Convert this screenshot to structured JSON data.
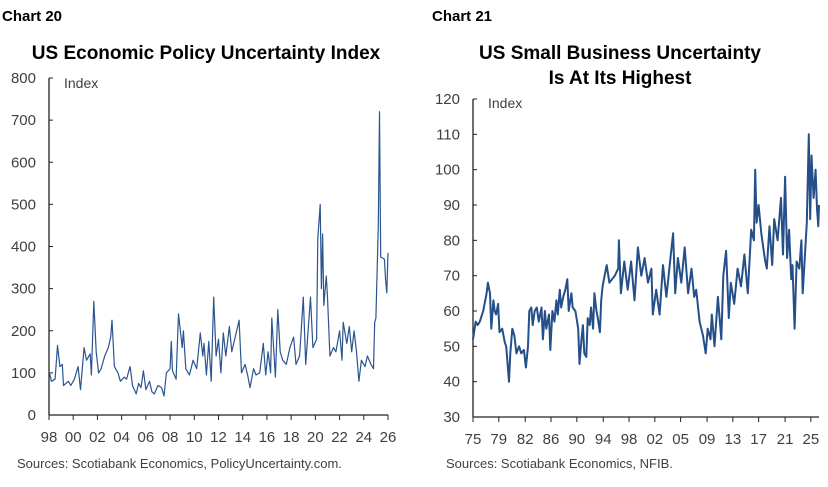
{
  "chart_data": [
    {
      "type": "line",
      "chart_number": "Chart 20",
      "title": "US Economic Policy Uncertainty Index",
      "ylabel": "Index",
      "ylim": [
        0,
        800
      ],
      "xlim": [
        1998,
        2026
      ],
      "yticks": [
        "0",
        "100",
        "200",
        "300",
        "400",
        "500",
        "600",
        "700",
        "800"
      ],
      "xticks": [
        {
          "label": "98",
          "x": 1998
        },
        {
          "label": "00",
          "x": 2000
        },
        {
          "label": "02",
          "x": 2002
        },
        {
          "label": "04",
          "x": 2004
        },
        {
          "label": "06",
          "x": 2006
        },
        {
          "label": "08",
          "x": 2008
        },
        {
          "label": "10",
          "x": 2010
        },
        {
          "label": "12",
          "x": 2012
        },
        {
          "label": "14",
          "x": 2014
        },
        {
          "label": "16",
          "x": 2016
        },
        {
          "label": "18",
          "x": 2018
        },
        {
          "label": "20",
          "x": 2020
        },
        {
          "label": "22",
          "x": 2022
        },
        {
          "label": "24",
          "x": 2024
        },
        {
          "label": "26",
          "x": 2026
        }
      ],
      "grid": false,
      "source": "Sources: Scotiabank Economics, PolicyUncertainty.com.",
      "color": "#2a5590",
      "x": [
        1998.0,
        1998.2,
        1998.5,
        1998.7,
        1998.9,
        1999.1,
        1999.2,
        1999.6,
        1999.8,
        2000.1,
        2000.4,
        2000.6,
        2000.9,
        2001.1,
        2001.4,
        2001.5,
        2001.7,
        2001.9,
        2002.1,
        2002.3,
        2002.6,
        2002.9,
        2003.1,
        2003.2,
        2003.4,
        2003.7,
        2003.9,
        2004.2,
        2004.4,
        2004.7,
        2004.9,
        2005.2,
        2005.4,
        2005.6,
        2005.8,
        2006.0,
        2006.3,
        2006.5,
        2006.7,
        2007.0,
        2007.3,
        2007.5,
        2007.7,
        2008.0,
        2008.1,
        2008.2,
        2008.5,
        2008.7,
        2009.0,
        2009.1,
        2009.3,
        2009.6,
        2009.9,
        2010.2,
        2010.5,
        2010.7,
        2010.8,
        2011.0,
        2011.2,
        2011.4,
        2011.6,
        2011.8,
        2012.0,
        2012.2,
        2012.4,
        2012.6,
        2012.9,
        2013.1,
        2013.7,
        2013.9,
        2014.2,
        2014.4,
        2014.6,
        2014.9,
        2015.1,
        2015.4,
        2015.7,
        2015.9,
        2016.1,
        2016.3,
        2016.4,
        2016.7,
        2016.9,
        2017.1,
        2017.3,
        2017.6,
        2017.9,
        2018.2,
        2018.4,
        2018.7,
        2019.0,
        2019.2,
        2019.6,
        2019.8,
        2020.1,
        2020.2,
        2020.4,
        2020.5,
        2020.6,
        2020.7,
        2020.9,
        2021.0,
        2021.2,
        2021.5,
        2021.7,
        2022.0,
        2022.2,
        2022.3,
        2022.6,
        2022.8,
        2023.0,
        2023.2,
        2023.4,
        2023.6,
        2023.8,
        2024.1,
        2024.3,
        2024.6,
        2024.8,
        2024.9,
        2025.0,
        2025.2,
        2025.3,
        2025.4,
        2025.7,
        2025.8,
        2025.9,
        2026.0
      ],
      "y": [
        105,
        80,
        85,
        165,
        115,
        120,
        70,
        80,
        70,
        85,
        115,
        60,
        160,
        130,
        145,
        95,
        270,
        150,
        100,
        110,
        140,
        160,
        185,
        225,
        115,
        100,
        80,
        90,
        85,
        115,
        70,
        50,
        75,
        65,
        105,
        60,
        80,
        55,
        50,
        70,
        65,
        45,
        100,
        110,
        175,
        105,
        85,
        240,
        160,
        200,
        110,
        95,
        130,
        110,
        195,
        140,
        170,
        95,
        175,
        80,
        280,
        140,
        180,
        100,
        195,
        140,
        210,
        150,
        225,
        100,
        120,
        95,
        65,
        110,
        95,
        100,
        170,
        95,
        150,
        100,
        230,
        90,
        250,
        150,
        130,
        120,
        160,
        185,
        120,
        140,
        280,
        120,
        280,
        160,
        180,
        420,
        500,
        300,
        430,
        260,
        330,
        280,
        140,
        160,
        150,
        200,
        130,
        220,
        170,
        210,
        150,
        200,
        150,
        80,
        130,
        115,
        140,
        120,
        110,
        220,
        230,
        450,
        720,
        375,
        370,
        320,
        290,
        385
      ]
    },
    {
      "type": "line",
      "chart_number": "Chart 21",
      "title": "US Small Business Uncertainty Is At Its Highest",
      "title_lines": [
        "US Small Business Uncertainty",
        "Is At Its Highest"
      ],
      "ylabel": "Index",
      "ylim": [
        30,
        120
      ],
      "xlim": [
        1975,
        2026
      ],
      "yticks": [
        "30",
        "40",
        "50",
        "60",
        "70",
        "80",
        "90",
        "100",
        "110",
        "120"
      ],
      "xticks": [
        {
          "label": "75",
          "x": 1975.0
        },
        {
          "label": "79",
          "x": 1978.8
        },
        {
          "label": "82",
          "x": 1982.7
        },
        {
          "label": "86",
          "x": 1986.5
        },
        {
          "label": "90",
          "x": 1990.3
        },
        {
          "label": "94",
          "x": 1994.2
        },
        {
          "label": "98",
          "x": 1998.0
        },
        {
          "label": "02",
          "x": 2001.8
        },
        {
          "label": "05",
          "x": 2005.6
        },
        {
          "label": "09",
          "x": 2009.5
        },
        {
          "label": "13",
          "x": 2013.3
        },
        {
          "label": "17",
          "x": 2017.1
        },
        {
          "label": "21",
          "x": 2021.0
        },
        {
          "label": "25",
          "x": 2024.8
        }
      ],
      "grid": false,
      "source": "Sources: Scotiabank Economics, NFIB.",
      "color": "#254f88",
      "x": [
        1975.0,
        1975.4,
        1975.7,
        1976.0,
        1976.5,
        1977.0,
        1977.2,
        1977.5,
        1977.7,
        1978.0,
        1978.2,
        1978.4,
        1978.7,
        1978.9,
        1979.3,
        1979.7,
        1979.9,
        1980.3,
        1980.5,
        1980.8,
        1981.1,
        1981.4,
        1981.8,
        1982.1,
        1982.5,
        1982.8,
        1983.1,
        1983.3,
        1983.6,
        1983.8,
        1984.1,
        1984.4,
        1984.7,
        1985.1,
        1985.3,
        1985.6,
        1985.8,
        1986.2,
        1986.4,
        1986.7,
        1987.0,
        1987.3,
        1987.5,
        1987.8,
        1988.0,
        1988.3,
        1988.6,
        1988.9,
        1989.1,
        1989.5,
        1989.7,
        1990.1,
        1990.5,
        1990.7,
        1991.0,
        1991.2,
        1991.4,
        1991.7,
        1991.9,
        1992.2,
        1992.4,
        1992.7,
        1992.9,
        1993.2,
        1993.4,
        1993.7,
        1993.9,
        1994.1,
        1994.4,
        1994.7,
        1995.1,
        1995.5,
        1995.9,
        1996.4,
        1996.5,
        1996.8,
        1997.3,
        1997.8,
        1998.3,
        1998.8,
        1999.3,
        1999.8,
        2000.3,
        2000.8,
        2001.3,
        2001.5,
        2002.0,
        2002.5,
        2003.0,
        2003.5,
        2004.0,
        2004.5,
        2004.8,
        2005.2,
        2005.7,
        2006.2,
        2006.7,
        2007.2,
        2007.6,
        2007.9,
        2008.4,
        2008.9,
        2009.3,
        2009.6,
        2010.0,
        2010.2,
        2010.6,
        2011.1,
        2011.6,
        2011.9,
        2012.3,
        2012.7,
        2013.0,
        2013.5,
        2014.0,
        2014.5,
        2015.0,
        2015.5,
        2016.0,
        2016.4,
        2016.6,
        2016.8,
        2017.1,
        2017.5,
        2018.0,
        2018.3,
        2018.7,
        2019.1,
        2019.4,
        2019.9,
        2020.4,
        2020.7,
        2021.0,
        2021.3,
        2021.6,
        2021.9,
        2022.1,
        2022.4,
        2022.7,
        2023.1,
        2023.4,
        2023.6,
        2024.0,
        2024.2,
        2024.5,
        2024.7,
        2024.9,
        2025.2,
        2025.5,
        2025.7,
        2025.9,
        2026.0
      ],
      "y": [
        52,
        57,
        56,
        57,
        60,
        65,
        68,
        65,
        55,
        63,
        60,
        59,
        62,
        54,
        55,
        51,
        50,
        40,
        48,
        55,
        53,
        48,
        50,
        48,
        49,
        44,
        50,
        60,
        61,
        56,
        60,
        61,
        57,
        61,
        52,
        60,
        55,
        59,
        49,
        60,
        57,
        63,
        59,
        66,
        61,
        64,
        66,
        69,
        60,
        65,
        61,
        60,
        55,
        45,
        52,
        56,
        48,
        47,
        58,
        56,
        61,
        55,
        65,
        60,
        58,
        54,
        63,
        67,
        70,
        73,
        68,
        69,
        70,
        72,
        80,
        65,
        74,
        66,
        74,
        63,
        78,
        70,
        75,
        68,
        72,
        59,
        66,
        59,
        73,
        64,
        73,
        82,
        65,
        75,
        68,
        78,
        65,
        72,
        64,
        66,
        57,
        53,
        48,
        55,
        52,
        59,
        50,
        64,
        52,
        70,
        77,
        58,
        68,
        62,
        72,
        67,
        76,
        65,
        83,
        80,
        100,
        85,
        90,
        82,
        75,
        72,
        84,
        73,
        86,
        80,
        92,
        76,
        98,
        75,
        83,
        69,
        73,
        55,
        74,
        72,
        80,
        65,
        78,
        85,
        110,
        86,
        104,
        92,
        100,
        89,
        84,
        90
      ]
    }
  ]
}
